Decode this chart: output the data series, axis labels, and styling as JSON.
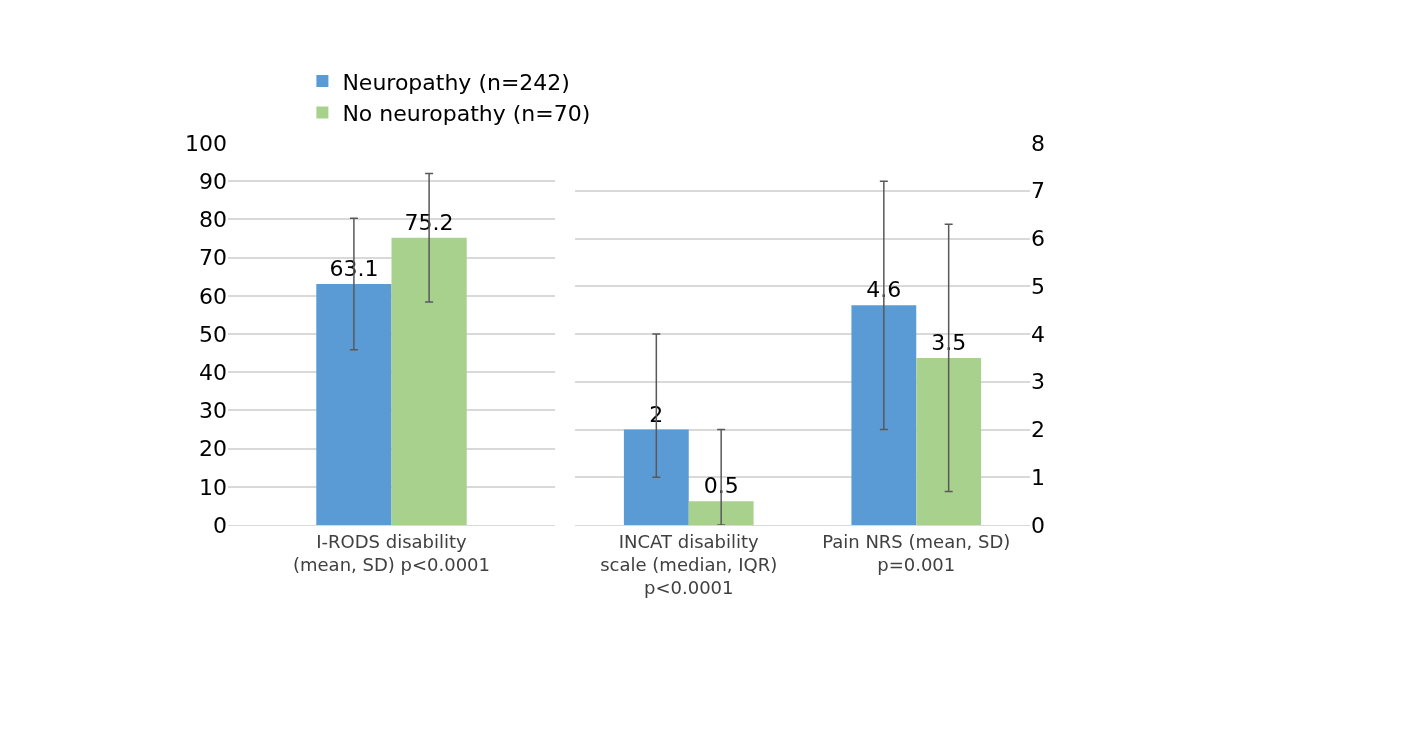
{
  "chart_data": [
    {
      "type": "bar",
      "categories": [
        "I-RODS disability (mean, SD) p<0.0001"
      ],
      "series": [
        {
          "name": "Neuropathy (n=242)",
          "color": "#5b9bd5",
          "values": [
            63.1
          ],
          "errors": [
            17.2
          ]
        },
        {
          "name": "No neuropathy (n=70)",
          "color": "#a9d18e",
          "values": [
            75.2
          ],
          "errors": [
            16.8
          ]
        }
      ],
      "ylim": [
        0,
        100
      ],
      "yticks": [
        0,
        10,
        20,
        30,
        40,
        50,
        60,
        70,
        80,
        90,
        100
      ],
      "grid": "y",
      "legend": "top",
      "data_labels": true
    },
    {
      "type": "bar",
      "categories": [
        "INCAT disability scale (median, IQR) p<0.0001",
        "Pain NRS (mean, SD) p=0.001"
      ],
      "series": [
        {
          "color": "#5b9bd5",
          "values": [
            2,
            4.6
          ],
          "errors": [
            [
              1,
              4
            ],
            2.6
          ]
        },
        {
          "color": "#a9d18e",
          "values": [
            0.5,
            3.5
          ],
          "errors": [
            [
              0,
              2
            ],
            2.8
          ]
        }
      ],
      "ylim": [
        0,
        8
      ],
      "yticks": [
        0,
        1,
        2,
        3,
        4,
        5,
        6,
        7,
        8
      ],
      "grid": "y",
      "data_labels": true
    }
  ]
}
